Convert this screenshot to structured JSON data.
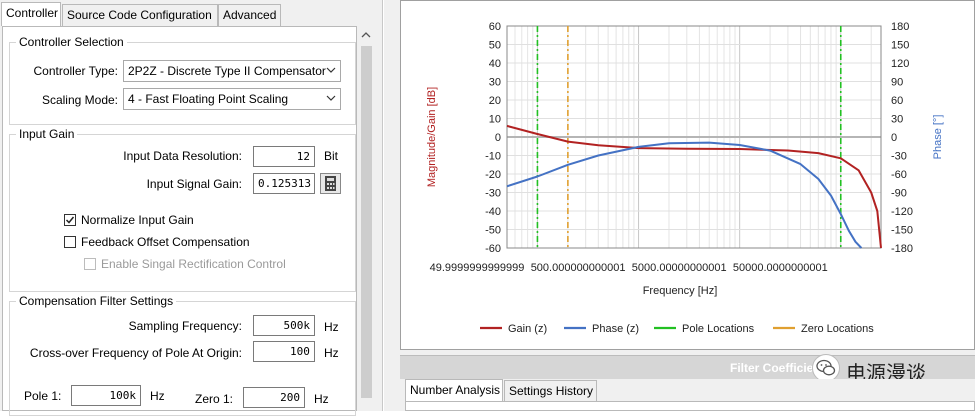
{
  "tabs": [
    "Controller",
    "Source Code Configuration",
    "Advanced"
  ],
  "controller_selection": {
    "title": "Controller Selection",
    "type_label": "Controller Type:",
    "type_value": "2P2Z - Discrete Type II Compensator",
    "scaling_label": "Scaling Mode:",
    "scaling_value": "4 - Fast Floating Point Scaling"
  },
  "input_gain": {
    "title": "Input Gain",
    "resolution_label": "Input Data Resolution:",
    "resolution_value": "12",
    "resolution_unit": "Bit",
    "signal_gain_label": "Input Signal Gain:",
    "signal_gain_value": "0.125313",
    "normalize_label": "Normalize Input Gain",
    "normalize_checked": true,
    "feedback_label": "Feedback Offset Compensation",
    "feedback_checked": false,
    "rectification_label": "Enable Singal Rectification Control",
    "rectification_enabled": false
  },
  "compensation": {
    "title": "Compensation Filter Settings",
    "sampling_label": "Sampling Frequency:",
    "sampling_value": "500k",
    "sampling_unit": "Hz",
    "crossover_label": "Cross-over Frequency of Pole At Origin:",
    "crossover_value": "100",
    "crossover_unit": "Hz",
    "pole1_label": "Pole 1:",
    "pole1_value": "100k",
    "pole1_unit": "Hz",
    "zero1_label": "Zero 1:",
    "zero1_value": "200",
    "zero1_unit": "Hz"
  },
  "bottom": {
    "bar_title": "Filter Coefficie",
    "watermark": "电源漫谈",
    "tabs": [
      "Number Analysis",
      "Settings History"
    ]
  },
  "colors": {
    "gain": "#b22222",
    "phase": "#4472c4",
    "pole": "#22c022",
    "zero": "#e0a030"
  },
  "chart_data": {
    "type": "line",
    "xlabel": "Frequency [Hz]",
    "ylabel_left": "Magnitude/Gain [dB]",
    "ylabel_right": "Phase [°]",
    "x_scale": "log",
    "xlim": [
      50,
      250000
    ],
    "x_tick_values": [
      50,
      500,
      5000,
      50000
    ],
    "x_tick_labels": [
      "49.9999999999999",
      "500.000000000001",
      "5000.00000000001",
      "50000.0000000001"
    ],
    "ylim_left": [
      -60,
      60
    ],
    "y_ticks_left": [
      "60",
      "50",
      "40",
      "30",
      "20",
      "10",
      "0",
      "-10",
      "-20",
      "-30",
      "-40",
      "-50",
      "-60"
    ],
    "ylim_right": [
      -180,
      180
    ],
    "y_ticks_right": [
      "180",
      "150",
      "120",
      "90",
      "60",
      "30",
      "0",
      "-30",
      "-60",
      "-90",
      "-120",
      "-150",
      "-180"
    ],
    "grid": true,
    "legend_placement": "bottom",
    "series": [
      {
        "name": "Gain (z)",
        "axis": "left",
        "x": [
          50,
          100,
          200,
          400,
          1000,
          3000,
          10000,
          30000,
          60000,
          100000,
          150000,
          200000,
          230000,
          250000
        ],
        "y": [
          6,
          1.6,
          -2.5,
          -4.5,
          -6,
          -6.3,
          -6.5,
          -7.3,
          -8.7,
          -11.5,
          -18,
          -30,
          -40,
          -60
        ]
      },
      {
        "name": "Phase (z)",
        "axis": "right",
        "x": [
          50,
          100,
          200,
          400,
          1000,
          2000,
          5000,
          10000,
          20000,
          40000,
          60000,
          80000,
          100000,
          120000,
          140000,
          160000
        ],
        "y": [
          -80,
          -64,
          -45,
          -30,
          -16,
          -10,
          -9,
          -13,
          -22,
          -44,
          -68,
          -95,
          -125,
          -152,
          -170,
          -180
        ]
      }
    ],
    "markers": [
      {
        "name": "Pole Locations",
        "x": [
          100,
          100000
        ]
      },
      {
        "name": "Zero Locations",
        "x": [
          200
        ]
      }
    ]
  }
}
